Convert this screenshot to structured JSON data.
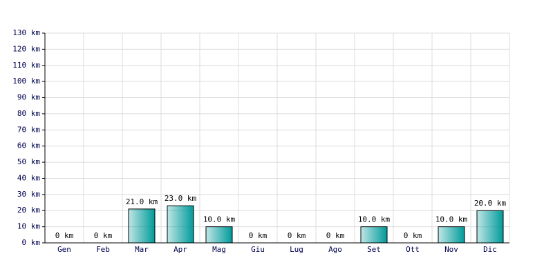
{
  "chart_data": {
    "type": "bar",
    "categories": [
      "Gen",
      "Feb",
      "Mar",
      "Apr",
      "Mag",
      "Giu",
      "Lug",
      "Ago",
      "Set",
      "Ott",
      "Nov",
      "Dic"
    ],
    "values": [
      0,
      0,
      21,
      23,
      10,
      0,
      0,
      0,
      10,
      0,
      10,
      20
    ],
    "value_labels": [
      "0 km",
      "0 km",
      "21.0 km",
      "23.0 km",
      "10.0 km",
      "0 km",
      "0 km",
      "0 km",
      "10.0 km",
      "0 km",
      "10.0 km",
      "20.0 km"
    ],
    "color": "#009a9a",
    "ylim": [
      0,
      130
    ],
    "yticks": [
      {
        "value": 0,
        "label": "0 km"
      },
      {
        "value": 10,
        "label": "10 km"
      },
      {
        "value": 20,
        "label": "20 km"
      },
      {
        "value": 30,
        "label": "30 km"
      },
      {
        "value": 40,
        "label": "40 km"
      },
      {
        "value": 50,
        "label": "50 km"
      },
      {
        "value": 60,
        "label": "60 km"
      },
      {
        "value": 70,
        "label": "70 km"
      },
      {
        "value": 80,
        "label": "80 km"
      },
      {
        "value": 90,
        "label": "90 km"
      },
      {
        "value": 100,
        "label": "100 km"
      },
      {
        "value": 110,
        "label": "110 km"
      },
      {
        "value": 120,
        "label": "120 km"
      },
      {
        "value": 130,
        "label": "130 km"
      }
    ],
    "grid": true
  }
}
